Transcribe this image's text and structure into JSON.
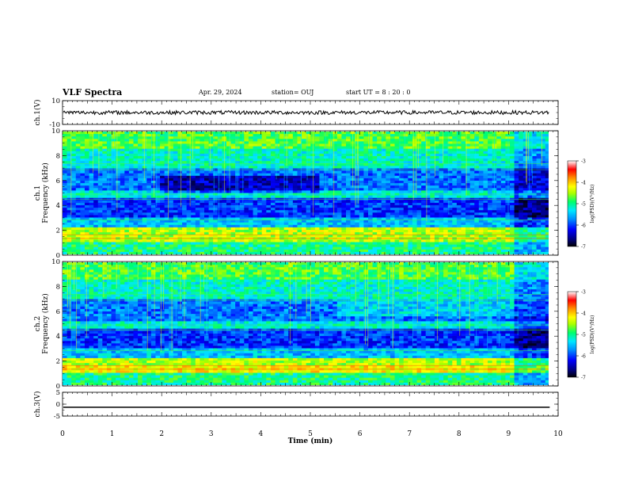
{
  "header": {
    "title": "VLF Spectra",
    "date": "Apr. 29, 2024",
    "station": "station= OUJ",
    "start": "start  UT =  8 : 20 : 0"
  },
  "chart_data": {
    "type": "heatmap",
    "title": "VLF Spectra",
    "xlabel": "Time  (min)",
    "xlim": [
      0,
      10
    ],
    "xticks": [
      "0",
      "1",
      "2",
      "3",
      "4",
      "5",
      "6",
      "7",
      "8",
      "9",
      "10"
    ],
    "panels": [
      {
        "id": "ch1-waveform",
        "type": "line",
        "ylabel": "ch.1(V)",
        "ylim": [
          -10,
          10
        ],
        "yticks": [
          "10",
          "-10"
        ],
        "x_end": 9.83,
        "approx_level": 0
      },
      {
        "id": "ch1-spectrogram",
        "type": "heatmap",
        "ylabel": "ch.1\nFrequency  (kHz)",
        "ylabel_line1": "ch.1",
        "ylabel_line2": "Frequency  (kHz)",
        "ylim": [
          0,
          10
        ],
        "yticks": [
          "0",
          "2",
          "4",
          "6",
          "8",
          "10"
        ],
        "x_end": 9.83,
        "colorbar": {
          "label": "log(PSD)(V²/Hz)",
          "range": [
            -7,
            -3
          ],
          "ticks": [
            "-3",
            "-4",
            "-5",
            "-6",
            "-7"
          ]
        }
      },
      {
        "id": "ch2-spectrogram",
        "type": "heatmap",
        "ylabel": "ch.2\nFrequency  (kHz)",
        "ylabel_line1": "ch.2",
        "ylabel_line2": "Frequency  (kHz)",
        "ylim": [
          0,
          10
        ],
        "yticks": [
          "0",
          "2",
          "4",
          "6",
          "8",
          "10"
        ],
        "x_end": 9.83,
        "colorbar": {
          "label": "log(PSD)(V²/Hz)",
          "range": [
            -7,
            -3
          ],
          "ticks": [
            "-3",
            "-4",
            "-5",
            "-6",
            "-7"
          ]
        }
      },
      {
        "id": "ch3-waveform",
        "type": "line",
        "ylabel": "ch.3(V)",
        "ylim": [
          -5,
          5
        ],
        "yticks": [
          "5",
          "0",
          "-5"
        ],
        "x_end": 9.83,
        "approx_level": -1.3
      }
    ],
    "colors": {
      "colormap": [
        "#000000",
        "#00007a",
        "#0000ff",
        "#0090ff",
        "#00e8ff",
        "#00ff6a",
        "#a8ff00",
        "#ffff00",
        "#ff9000",
        "#ff0000",
        "#ffffff"
      ]
    }
  }
}
